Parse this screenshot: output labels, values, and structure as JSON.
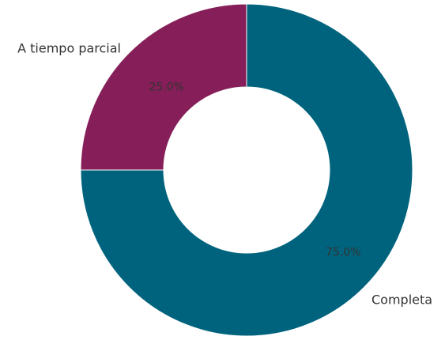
{
  "chart_data": {
    "type": "pie",
    "donut": true,
    "categories": [
      "Completa",
      "A tiempo parcial"
    ],
    "values": [
      75.0,
      25.0
    ],
    "value_labels": [
      "75.0%",
      "25.0%"
    ],
    "colors": [
      "#00637d",
      "#861f59"
    ],
    "title": "",
    "legend": "none"
  }
}
